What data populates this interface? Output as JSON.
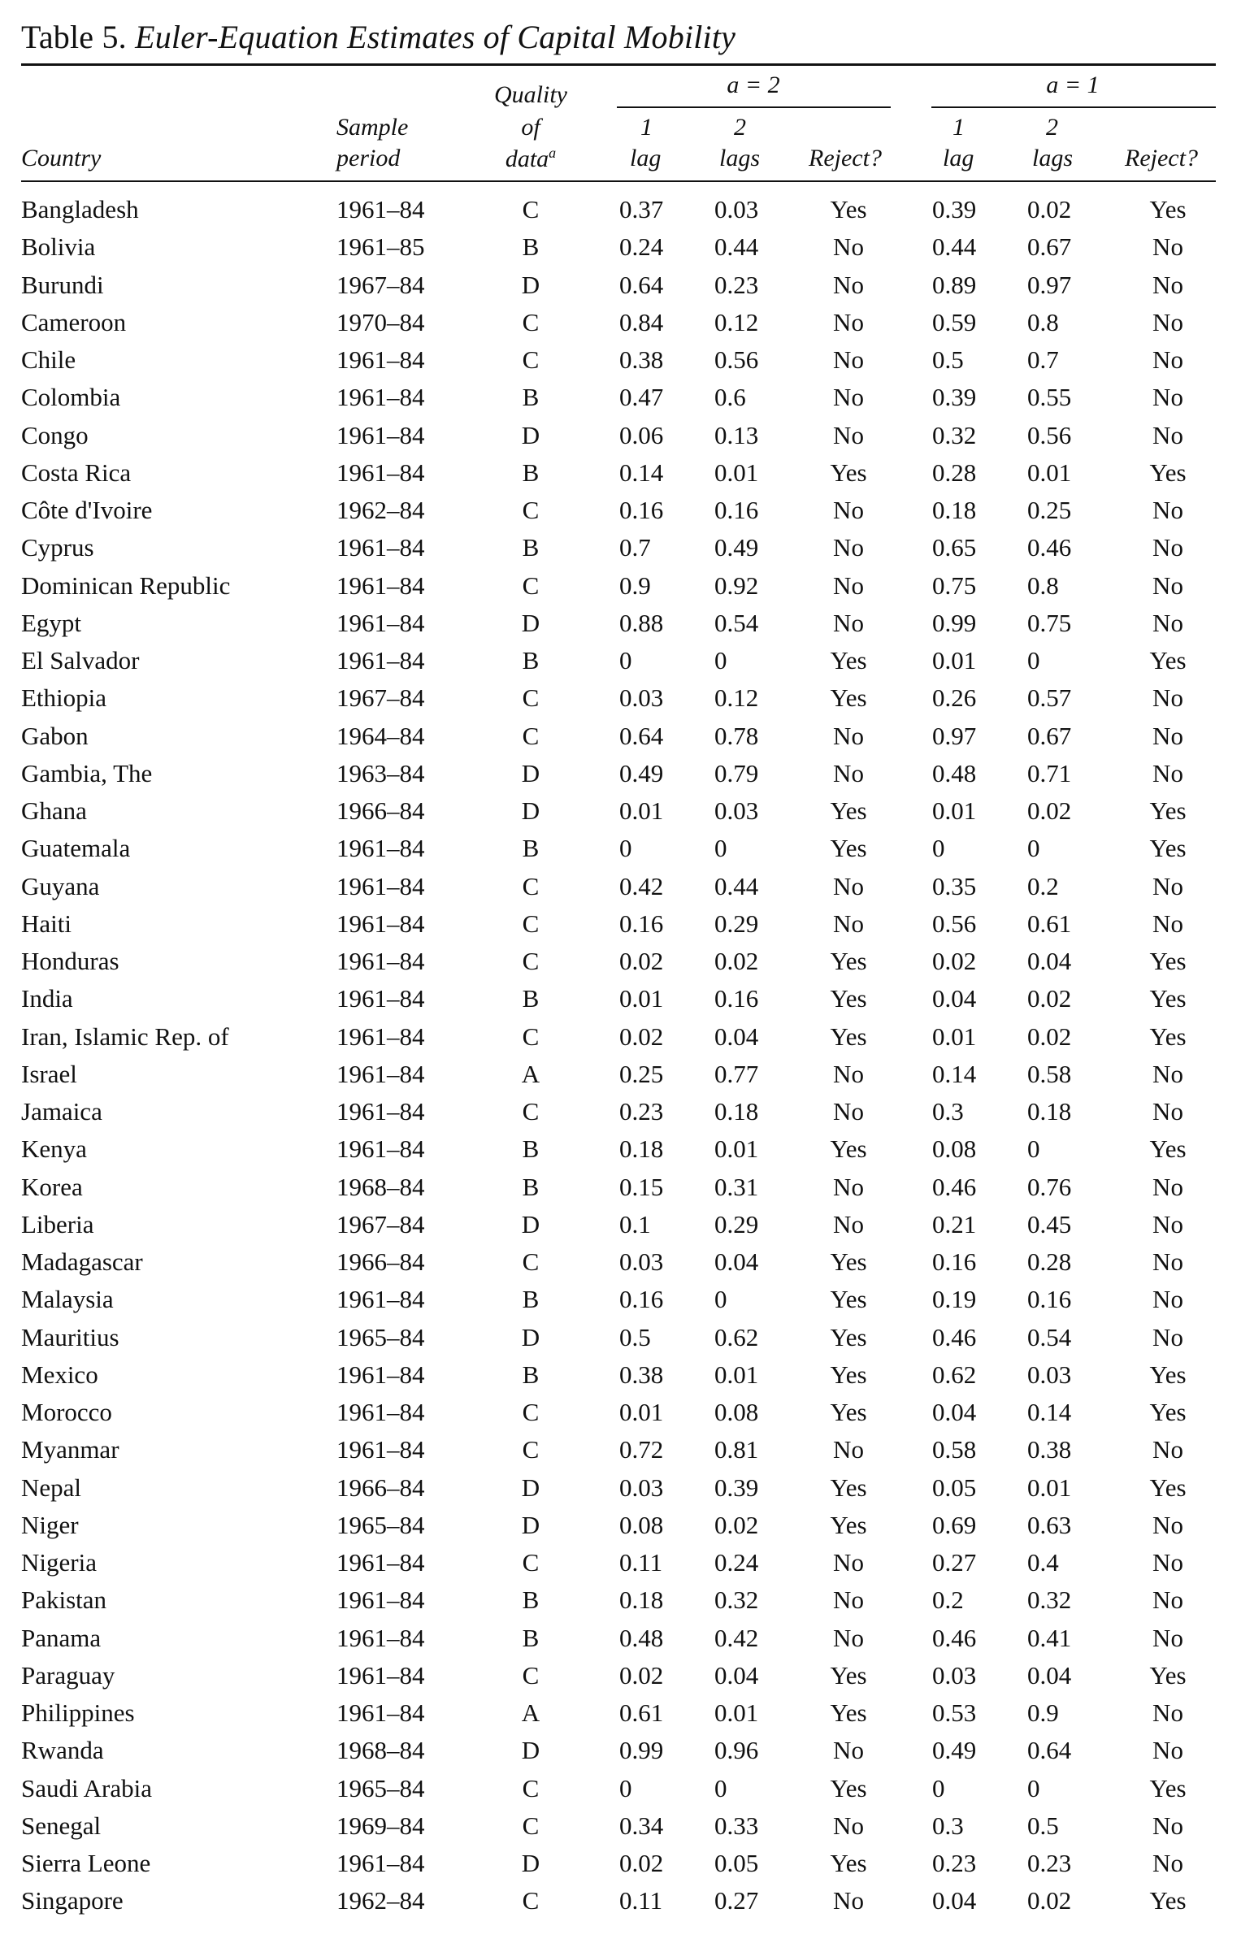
{
  "table": {
    "title_label": "Table 5.",
    "title_text": "Euler-Equation Estimates of Capital Mobility",
    "headers": {
      "country": "Country",
      "sample_1": "Sample",
      "sample_2": "period",
      "quality_1": "Quality",
      "quality_2": "of",
      "quality_3": "data",
      "quality_note": "a",
      "group_a2": "a = 2",
      "group_a1": "a = 1",
      "lag1_1": "1",
      "lag1_2": "lag",
      "lag2_1": "2",
      "lag2_2": "lags",
      "reject": "Reject?"
    },
    "rows": [
      {
        "country": "Bangladesh",
        "period": "1961–84",
        "quality": "C",
        "a2_lag1": "0.37",
        "a2_lag2": "0.03",
        "a2_reject": "Yes",
        "a1_lag1": "0.39",
        "a1_lag2": "0.02",
        "a1_reject": "Yes"
      },
      {
        "country": "Bolivia",
        "period": "1961–85",
        "quality": "B",
        "a2_lag1": "0.24",
        "a2_lag2": "0.44",
        "a2_reject": "No",
        "a1_lag1": "0.44",
        "a1_lag2": "0.67",
        "a1_reject": "No"
      },
      {
        "country": "Burundi",
        "period": "1967–84",
        "quality": "D",
        "a2_lag1": "0.64",
        "a2_lag2": "0.23",
        "a2_reject": "No",
        "a1_lag1": "0.89",
        "a1_lag2": "0.97",
        "a1_reject": "No"
      },
      {
        "country": "Cameroon",
        "period": "1970–84",
        "quality": "C",
        "a2_lag1": "0.84",
        "a2_lag2": "0.12",
        "a2_reject": "No",
        "a1_lag1": "0.59",
        "a1_lag2": "0.8",
        "a1_reject": "No"
      },
      {
        "country": "Chile",
        "period": "1961–84",
        "quality": "C",
        "a2_lag1": "0.38",
        "a2_lag2": "0.56",
        "a2_reject": "No",
        "a1_lag1": "0.5",
        "a1_lag2": "0.7",
        "a1_reject": "No"
      },
      {
        "country": "Colombia",
        "period": "1961–84",
        "quality": "B",
        "a2_lag1": "0.47",
        "a2_lag2": "0.6",
        "a2_reject": "No",
        "a1_lag1": "0.39",
        "a1_lag2": "0.55",
        "a1_reject": "No"
      },
      {
        "country": "Congo",
        "period": "1961–84",
        "quality": "D",
        "a2_lag1": "0.06",
        "a2_lag2": "0.13",
        "a2_reject": "No",
        "a1_lag1": "0.32",
        "a1_lag2": "0.56",
        "a1_reject": "No"
      },
      {
        "country": "Costa Rica",
        "period": "1961–84",
        "quality": "B",
        "a2_lag1": "0.14",
        "a2_lag2": "0.01",
        "a2_reject": "Yes",
        "a1_lag1": "0.28",
        "a1_lag2": "0.01",
        "a1_reject": "Yes"
      },
      {
        "country": "Côte d'Ivoire",
        "period": "1962–84",
        "quality": "C",
        "a2_lag1": "0.16",
        "a2_lag2": "0.16",
        "a2_reject": "No",
        "a1_lag1": "0.18",
        "a1_lag2": "0.25",
        "a1_reject": "No"
      },
      {
        "country": "Cyprus",
        "period": "1961–84",
        "quality": "B",
        "a2_lag1": "0.7",
        "a2_lag2": "0.49",
        "a2_reject": "No",
        "a1_lag1": "0.65",
        "a1_lag2": "0.46",
        "a1_reject": "No"
      },
      {
        "country": "Dominican Republic",
        "period": "1961–84",
        "quality": "C",
        "a2_lag1": "0.9",
        "a2_lag2": "0.92",
        "a2_reject": "No",
        "a1_lag1": "0.75",
        "a1_lag2": "0.8",
        "a1_reject": "No"
      },
      {
        "country": "Egypt",
        "period": "1961–84",
        "quality": "D",
        "a2_lag1": "0.88",
        "a2_lag2": "0.54",
        "a2_reject": "No",
        "a1_lag1": "0.99",
        "a1_lag2": "0.75",
        "a1_reject": "No"
      },
      {
        "country": "El Salvador",
        "period": "1961–84",
        "quality": "B",
        "a2_lag1": "0",
        "a2_lag2": "0",
        "a2_reject": "Yes",
        "a1_lag1": "0.01",
        "a1_lag2": "0",
        "a1_reject": "Yes"
      },
      {
        "country": "Ethiopia",
        "period": "1967–84",
        "quality": "C",
        "a2_lag1": "0.03",
        "a2_lag2": "0.12",
        "a2_reject": "Yes",
        "a1_lag1": "0.26",
        "a1_lag2": "0.57",
        "a1_reject": "No"
      },
      {
        "country": "Gabon",
        "period": "1964–84",
        "quality": "C",
        "a2_lag1": "0.64",
        "a2_lag2": "0.78",
        "a2_reject": "No",
        "a1_lag1": "0.97",
        "a1_lag2": "0.67",
        "a1_reject": "No"
      },
      {
        "country": "Gambia, The",
        "period": "1963–84",
        "quality": "D",
        "a2_lag1": "0.49",
        "a2_lag2": "0.79",
        "a2_reject": "No",
        "a1_lag1": "0.48",
        "a1_lag2": "0.71",
        "a1_reject": "No"
      },
      {
        "country": "Ghana",
        "period": "1966–84",
        "quality": "D",
        "a2_lag1": "0.01",
        "a2_lag2": "0.03",
        "a2_reject": "Yes",
        "a1_lag1": "0.01",
        "a1_lag2": "0.02",
        "a1_reject": "Yes"
      },
      {
        "country": "Guatemala",
        "period": "1961–84",
        "quality": "B",
        "a2_lag1": "0",
        "a2_lag2": "0",
        "a2_reject": "Yes",
        "a1_lag1": "0",
        "a1_lag2": "0",
        "a1_reject": "Yes"
      },
      {
        "country": "Guyana",
        "period": "1961–84",
        "quality": "C",
        "a2_lag1": "0.42",
        "a2_lag2": "0.44",
        "a2_reject": "No",
        "a1_lag1": "0.35",
        "a1_lag2": "0.2",
        "a1_reject": "No"
      },
      {
        "country": "Haiti",
        "period": "1961–84",
        "quality": "C",
        "a2_lag1": "0.16",
        "a2_lag2": "0.29",
        "a2_reject": "No",
        "a1_lag1": "0.56",
        "a1_lag2": "0.61",
        "a1_reject": "No"
      },
      {
        "country": "Honduras",
        "period": "1961–84",
        "quality": "C",
        "a2_lag1": "0.02",
        "a2_lag2": "0.02",
        "a2_reject": "Yes",
        "a1_lag1": "0.02",
        "a1_lag2": "0.04",
        "a1_reject": "Yes"
      },
      {
        "country": "India",
        "period": "1961–84",
        "quality": "B",
        "a2_lag1": "0.01",
        "a2_lag2": "0.16",
        "a2_reject": "Yes",
        "a1_lag1": "0.04",
        "a1_lag2": "0.02",
        "a1_reject": "Yes"
      },
      {
        "country": "Iran, Islamic Rep. of",
        "period": "1961–84",
        "quality": "C",
        "a2_lag1": "0.02",
        "a2_lag2": "0.04",
        "a2_reject": "Yes",
        "a1_lag1": "0.01",
        "a1_lag2": "0.02",
        "a1_reject": "Yes"
      },
      {
        "country": "Israel",
        "period": "1961–84",
        "quality": "A",
        "a2_lag1": "0.25",
        "a2_lag2": "0.77",
        "a2_reject": "No",
        "a1_lag1": "0.14",
        "a1_lag2": "0.58",
        "a1_reject": "No"
      },
      {
        "country": "Jamaica",
        "period": "1961–84",
        "quality": "C",
        "a2_lag1": "0.23",
        "a2_lag2": "0.18",
        "a2_reject": "No",
        "a1_lag1": "0.3",
        "a1_lag2": "0.18",
        "a1_reject": "No"
      },
      {
        "country": "Kenya",
        "period": "1961–84",
        "quality": "B",
        "a2_lag1": "0.18",
        "a2_lag2": "0.01",
        "a2_reject": "Yes",
        "a1_lag1": "0.08",
        "a1_lag2": "0",
        "a1_reject": "Yes"
      },
      {
        "country": "Korea",
        "period": "1968–84",
        "quality": "B",
        "a2_lag1": "0.15",
        "a2_lag2": "0.31",
        "a2_reject": "No",
        "a1_lag1": "0.46",
        "a1_lag2": "0.76",
        "a1_reject": "No"
      },
      {
        "country": "Liberia",
        "period": "1967–84",
        "quality": "D",
        "a2_lag1": "0.1",
        "a2_lag2": "0.29",
        "a2_reject": "No",
        "a1_lag1": "0.21",
        "a1_lag2": "0.45",
        "a1_reject": "No"
      },
      {
        "country": "Madagascar",
        "period": "1966–84",
        "quality": "C",
        "a2_lag1": "0.03",
        "a2_lag2": "0.04",
        "a2_reject": "Yes",
        "a1_lag1": "0.16",
        "a1_lag2": "0.28",
        "a1_reject": "No"
      },
      {
        "country": "Malaysia",
        "period": "1961–84",
        "quality": "B",
        "a2_lag1": "0.16",
        "a2_lag2": "0",
        "a2_reject": "Yes",
        "a1_lag1": "0.19",
        "a1_lag2": "0.16",
        "a1_reject": "No"
      },
      {
        "country": "Mauritius",
        "period": "1965–84",
        "quality": "D",
        "a2_lag1": "0.5",
        "a2_lag2": "0.62",
        "a2_reject": "Yes",
        "a1_lag1": "0.46",
        "a1_lag2": "0.54",
        "a1_reject": "No"
      },
      {
        "country": "Mexico",
        "period": "1961–84",
        "quality": "B",
        "a2_lag1": "0.38",
        "a2_lag2": "0.01",
        "a2_reject": "Yes",
        "a1_lag1": "0.62",
        "a1_lag2": "0.03",
        "a1_reject": "Yes"
      },
      {
        "country": "Morocco",
        "period": "1961–84",
        "quality": "C",
        "a2_lag1": "0.01",
        "a2_lag2": "0.08",
        "a2_reject": "Yes",
        "a1_lag1": "0.04",
        "a1_lag2": "0.14",
        "a1_reject": "Yes"
      },
      {
        "country": "Myanmar",
        "period": "1961–84",
        "quality": "C",
        "a2_lag1": "0.72",
        "a2_lag2": "0.81",
        "a2_reject": "No",
        "a1_lag1": "0.58",
        "a1_lag2": "0.38",
        "a1_reject": "No"
      },
      {
        "country": "Nepal",
        "period": "1966–84",
        "quality": "D",
        "a2_lag1": "0.03",
        "a2_lag2": "0.39",
        "a2_reject": "Yes",
        "a1_lag1": "0.05",
        "a1_lag2": "0.01",
        "a1_reject": "Yes"
      },
      {
        "country": "Niger",
        "period": "1965–84",
        "quality": "D",
        "a2_lag1": "0.08",
        "a2_lag2": "0.02",
        "a2_reject": "Yes",
        "a1_lag1": "0.69",
        "a1_lag2": "0.63",
        "a1_reject": "No"
      },
      {
        "country": "Nigeria",
        "period": "1961–84",
        "quality": "C",
        "a2_lag1": "0.11",
        "a2_lag2": "0.24",
        "a2_reject": "No",
        "a1_lag1": "0.27",
        "a1_lag2": "0.4",
        "a1_reject": "No"
      },
      {
        "country": "Pakistan",
        "period": "1961–84",
        "quality": "B",
        "a2_lag1": "0.18",
        "a2_lag2": "0.32",
        "a2_reject": "No",
        "a1_lag1": "0.2",
        "a1_lag2": "0.32",
        "a1_reject": "No"
      },
      {
        "country": "Panama",
        "period": "1961–84",
        "quality": "B",
        "a2_lag1": "0.48",
        "a2_lag2": "0.42",
        "a2_reject": "No",
        "a1_lag1": "0.46",
        "a1_lag2": "0.41",
        "a1_reject": "No"
      },
      {
        "country": "Paraguay",
        "period": "1961–84",
        "quality": "C",
        "a2_lag1": "0.02",
        "a2_lag2": "0.04",
        "a2_reject": "Yes",
        "a1_lag1": "0.03",
        "a1_lag2": "0.04",
        "a1_reject": "Yes"
      },
      {
        "country": "Philippines",
        "period": "1961–84",
        "quality": "A",
        "a2_lag1": "0.61",
        "a2_lag2": "0.01",
        "a2_reject": "Yes",
        "a1_lag1": "0.53",
        "a1_lag2": "0.9",
        "a1_reject": "No"
      },
      {
        "country": "Rwanda",
        "period": "1968–84",
        "quality": "D",
        "a2_lag1": "0.99",
        "a2_lag2": "0.96",
        "a2_reject": "No",
        "a1_lag1": "0.49",
        "a1_lag2": "0.64",
        "a1_reject": "No"
      },
      {
        "country": "Saudi Arabia",
        "period": "1965–84",
        "quality": "C",
        "a2_lag1": "0",
        "a2_lag2": "0",
        "a2_reject": "Yes",
        "a1_lag1": "0",
        "a1_lag2": "0",
        "a1_reject": "Yes"
      },
      {
        "country": "Senegal",
        "period": "1969–84",
        "quality": "C",
        "a2_lag1": "0.34",
        "a2_lag2": "0.33",
        "a2_reject": "No",
        "a1_lag1": "0.3",
        "a1_lag2": "0.5",
        "a1_reject": "No"
      },
      {
        "country": "Sierra Leone",
        "period": "1961–84",
        "quality": "D",
        "a2_lag1": "0.02",
        "a2_lag2": "0.05",
        "a2_reject": "Yes",
        "a1_lag1": "0.23",
        "a1_lag2": "0.23",
        "a1_reject": "No"
      },
      {
        "country": "Singapore",
        "period": "1962–84",
        "quality": "C",
        "a2_lag1": "0.11",
        "a2_lag2": "0.27",
        "a2_reject": "No",
        "a1_lag1": "0.04",
        "a1_lag2": "0.02",
        "a1_reject": "Yes"
      }
    ]
  }
}
